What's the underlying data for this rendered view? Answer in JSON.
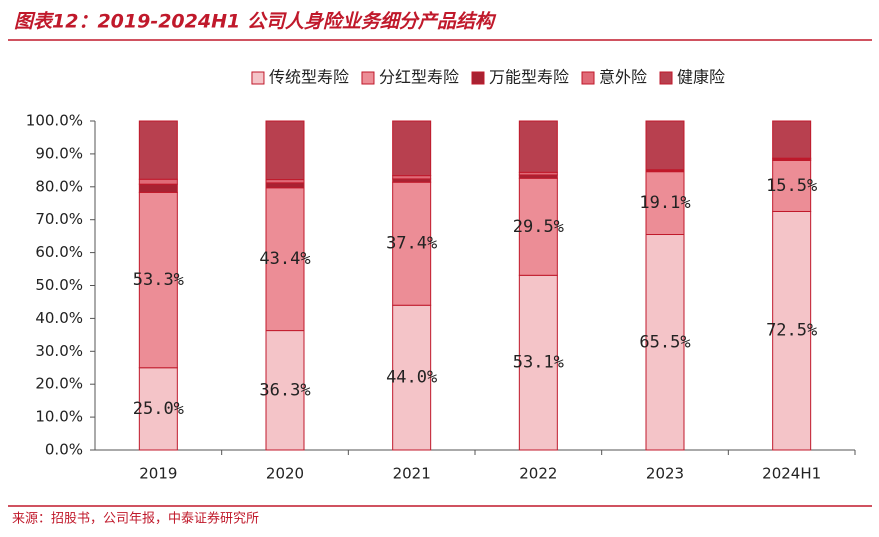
{
  "chart_data": {
    "type": "stacked_bar",
    "title": "图表12：2019-2024H1 公司人身险业务细分产品结构",
    "source": "来源：招股书，公司年报，中泰证券研究所",
    "categories": [
      "2019",
      "2020",
      "2021",
      "2022",
      "2023",
      "2024H1"
    ],
    "series": [
      {
        "name": "传统型寿险",
        "color": "#f4c4c8",
        "values": [
          25.0,
          36.3,
          44.0,
          53.1,
          65.5,
          72.5
        ],
        "value_labels": [
          "25.0%",
          "36.3%",
          "44.0%",
          "53.1%",
          "65.5%",
          "72.5%"
        ]
      },
      {
        "name": "分红型寿险",
        "color": "#ec8d96",
        "values": [
          53.3,
          43.4,
          37.4,
          29.5,
          19.1,
          15.5
        ],
        "value_labels": [
          "53.3%",
          "43.4%",
          "37.4%",
          "29.5%",
          "19.1%",
          "15.5%"
        ]
      },
      {
        "name": "万能型寿险",
        "color": "#a82232",
        "values": [
          2.5,
          1.5,
          1.0,
          1.0,
          0.3,
          0.4
        ]
      },
      {
        "name": "意外险",
        "color": "#e06a77",
        "values": [
          1.5,
          1.0,
          1.0,
          0.8,
          0.3,
          0.3
        ]
      },
      {
        "name": "健康险",
        "color": "#b8404f",
        "values": [
          17.7,
          17.8,
          16.6,
          15.6,
          14.8,
          11.3
        ]
      }
    ],
    "ylim": [
      0,
      100
    ],
    "yticks": [
      {
        "value": 0,
        "label": "0.0%"
      },
      {
        "value": 10,
        "label": "10.0%"
      },
      {
        "value": 20,
        "label": "20.0%"
      },
      {
        "value": 30,
        "label": "30.0%"
      },
      {
        "value": 40,
        "label": "40.0%"
      },
      {
        "value": 50,
        "label": "50.0%"
      },
      {
        "value": 60,
        "label": "60.0%"
      },
      {
        "value": 70,
        "label": "70.0%"
      },
      {
        "value": 80,
        "label": "80.0%"
      },
      {
        "value": 90,
        "label": "90.0%"
      },
      {
        "value": 100,
        "label": "100.0%"
      }
    ],
    "legend": "top"
  }
}
